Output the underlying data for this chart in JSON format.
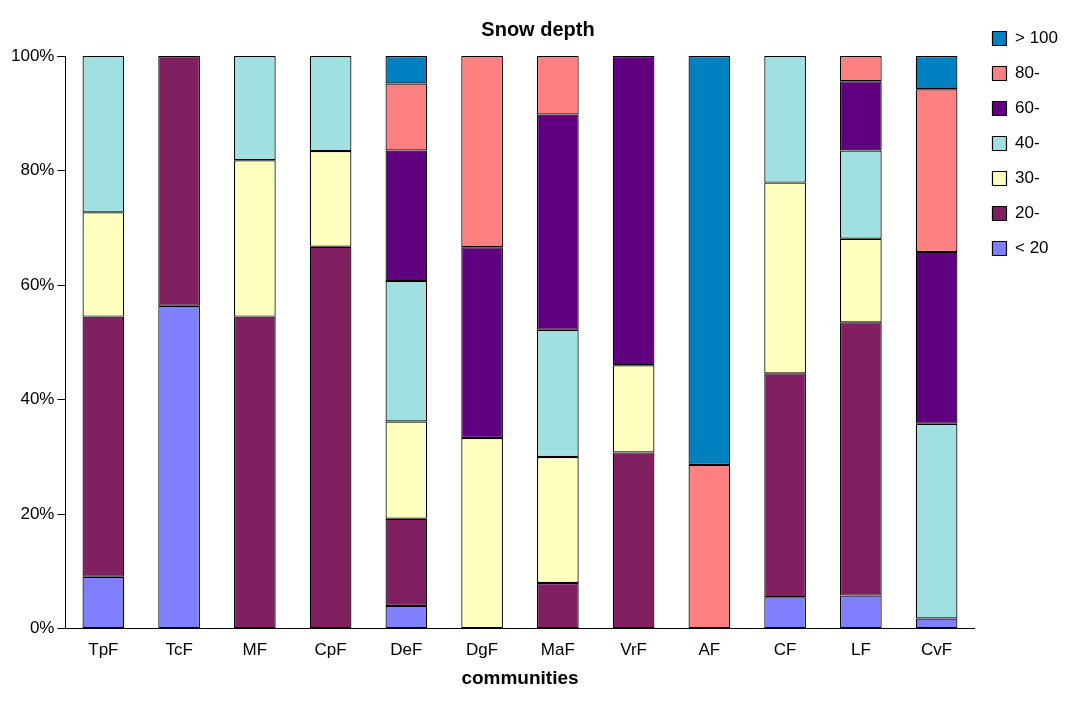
{
  "chart_data": {
    "type": "bar",
    "title": "Snow depth",
    "xlabel": "communities",
    "stacked": true,
    "legend": "right",
    "grid": false,
    "categories": [
      "TpF",
      "TcF",
      "MF",
      "CpF",
      "DeF",
      "DgF",
      "MaF",
      "VrF",
      "AF",
      "CF",
      "LF",
      "CvF"
    ],
    "ylim": [
      0,
      100
    ],
    "yticks": [
      {
        "value": 0,
        "label": "0%"
      },
      {
        "value": 20,
        "label": "20%"
      },
      {
        "value": 40,
        "label": "40%"
      },
      {
        "value": 60,
        "label": "60%"
      },
      {
        "value": 80,
        "label": "80%"
      },
      {
        "value": 100,
        "label": "100%"
      }
    ],
    "series": [
      {
        "name": "< 20",
        "color": "#8080ff",
        "values": [
          9.1,
          56.4,
          0,
          0,
          4,
          0,
          0,
          0,
          0,
          5.5,
          5.8,
          1.8
        ]
      },
      {
        "name": "20-",
        "color": "#802060",
        "values": [
          45.4,
          43.6,
          54.5,
          66.7,
          15.2,
          0,
          8,
          30.8,
          0,
          39.1,
          47.7,
          0
        ]
      },
      {
        "name": "30-",
        "color": "#ffffc0",
        "values": [
          18.2,
          0,
          27.3,
          16.7,
          17,
          33.3,
          22,
          15.2,
          0,
          33.3,
          14.6,
          0
        ]
      },
      {
        "name": "40-",
        "color": "#a0e0e0",
        "values": [
          27.3,
          0,
          18.2,
          16.6,
          24.5,
          0,
          22.2,
          0,
          0,
          22.1,
          15.4,
          34
        ]
      },
      {
        "name": "60-",
        "color": "#600080",
        "values": [
          0,
          0,
          0,
          0,
          22.8,
          33.3,
          37.6,
          54,
          0,
          0,
          12.1,
          30
        ]
      },
      {
        "name": "80-",
        "color": "#ff8080",
        "values": [
          0,
          0,
          0,
          0,
          11.7,
          33.4,
          10.2,
          0,
          28.6,
          0,
          4.4,
          28.4
        ]
      },
      {
        "name": "> 100",
        "color": "#0080c0",
        "values": [
          0,
          0,
          0,
          0,
          4.8,
          0,
          0,
          0,
          71.4,
          0,
          0,
          5.8
        ]
      }
    ]
  }
}
